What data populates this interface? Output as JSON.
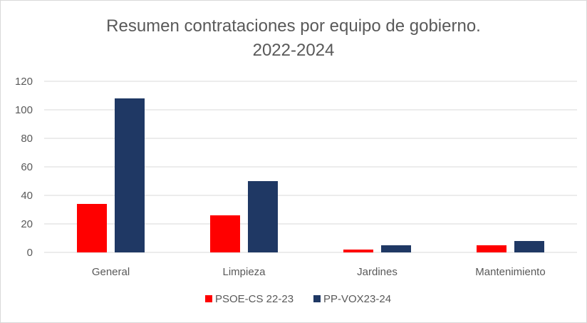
{
  "chart_data": {
    "type": "bar",
    "title": "Resumen contrataciones por equipo de gobierno.",
    "subtitle": "2022-2024",
    "categories": [
      "General",
      "Limpieza",
      "Jardines",
      "Mantenimiento"
    ],
    "series": [
      {
        "name": "PSOE-CS 22-23",
        "color": "#ff0000",
        "values": [
          34,
          26,
          2,
          5
        ]
      },
      {
        "name": "PP-VOX23-24",
        "color": "#1f3864",
        "values": [
          108,
          50,
          5,
          8
        ]
      }
    ],
    "ylim": [
      0,
      120
    ],
    "yticks": [
      0,
      20,
      40,
      60,
      80,
      100,
      120
    ],
    "grid": true,
    "legend_position": "bottom"
  }
}
